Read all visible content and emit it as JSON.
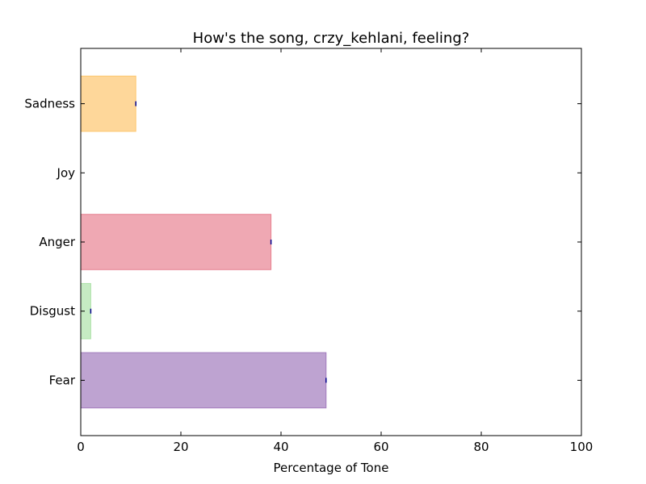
{
  "chart_data": {
    "type": "bar",
    "orientation": "horizontal",
    "title": "How's the song, crzy_kehlani, feeling?",
    "xlabel": "Percentage of Tone",
    "ylabel": "",
    "xlim": [
      0,
      100
    ],
    "ylim": [
      -0.8,
      4.8
    ],
    "xticks": [
      0,
      20,
      40,
      60,
      80,
      100
    ],
    "categories": [
      "Fear",
      "Disgust",
      "Anger",
      "Joy",
      "Sadness"
    ],
    "values": [
      49,
      2,
      38,
      0,
      11
    ],
    "colors": [
      "#9b72b8",
      "#a8e0a3",
      "#e67a8a",
      "#f4e04d",
      "#fdc264"
    ],
    "error_color": "#00008b",
    "grid": false,
    "legend": "none"
  }
}
